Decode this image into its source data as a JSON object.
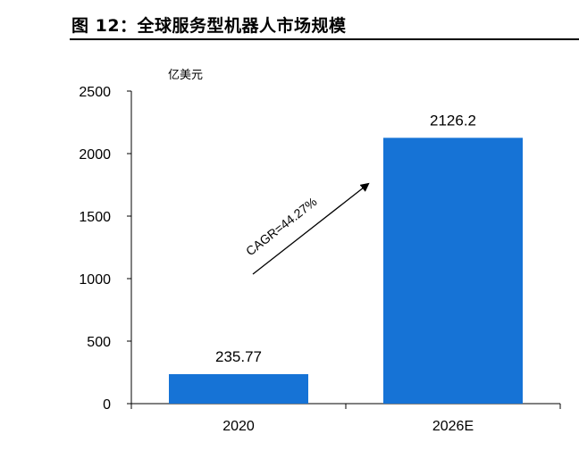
{
  "figure": {
    "title": "图 12：全球服务型机器人市场规模"
  },
  "chart_data": {
    "type": "bar",
    "title": "图 12：全球服务型机器人市场规模",
    "categories": [
      "2020",
      "2026E"
    ],
    "values": [
      235.77,
      2126.2
    ],
    "value_labels": [
      "235.77",
      "2126.2"
    ],
    "unit": "亿美元",
    "ylim": [
      0,
      2500
    ],
    "yticks": [
      0,
      500,
      1000,
      1500,
      2000,
      2500
    ],
    "xlabel": "",
    "ylabel": "",
    "annotation": "CAGR=44.27%",
    "bar_color": "#1673D6",
    "grid": false,
    "legend": "none"
  }
}
